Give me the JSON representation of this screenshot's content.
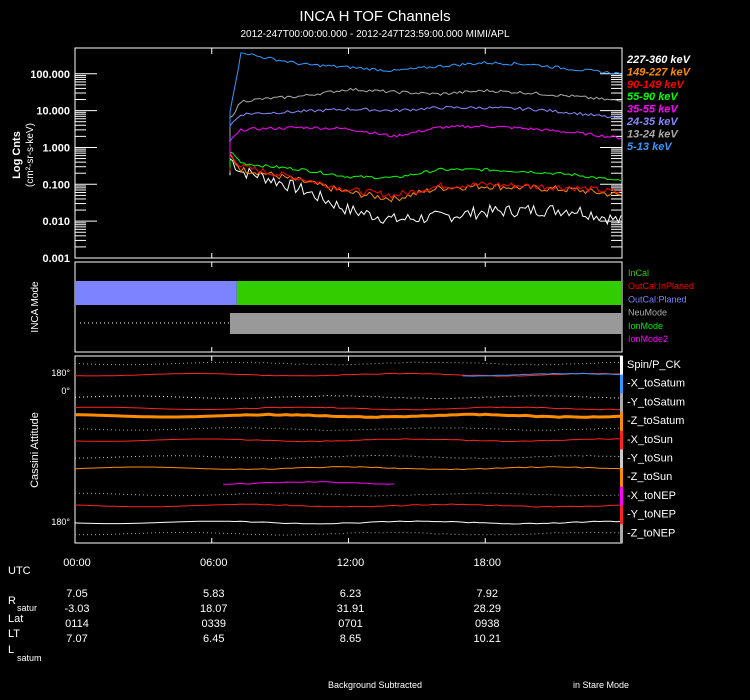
{
  "header": {
    "title": "INCA H TOF Channels",
    "subtitle": "2012-247T00:00:00.000 - 2012-247T23:59:00.000 MIMI/APL"
  },
  "chart_data": [
    {
      "type": "line",
      "name": "tof-spectrogram",
      "ylabel_line1": "Log Cnts",
      "ylabel_line2": "(cm²-sr-s-keV)",
      "yscale": "log",
      "ylim": [
        0.001,
        500
      ],
      "yticks": [
        "100.000",
        "10.000",
        "1.000",
        "0.100",
        "0.010",
        "0.001"
      ],
      "ytick_values": [
        100,
        10,
        1,
        0.1,
        0.01,
        0.001
      ],
      "xlim_hours": [
        0,
        24
      ],
      "data_start_hour": 6.8,
      "x_hours": [
        6.8,
        7.3,
        8,
        10,
        12,
        14,
        16,
        18,
        20,
        22,
        24
      ],
      "series": [
        {
          "name": "227-360 keV",
          "color": "#ffffff",
          "values": [
            0.5,
            0.22,
            0.18,
            0.07,
            0.02,
            0.011,
            0.013,
            0.018,
            0.02,
            0.02,
            0.01
          ]
        },
        {
          "name": "149-227 keV",
          "color": "#ff8c00",
          "values": [
            0.6,
            0.25,
            0.22,
            0.12,
            0.06,
            0.04,
            0.08,
            0.09,
            0.08,
            0.07,
            0.05
          ]
        },
        {
          "name": "90-149 keV",
          "color": "#ff0000",
          "values": [
            0.7,
            0.3,
            0.24,
            0.14,
            0.07,
            0.05,
            0.09,
            0.1,
            0.09,
            0.08,
            0.06
          ]
        },
        {
          "name": "55-90 keV",
          "color": "#00ff00",
          "values": [
            0.8,
            0.38,
            0.33,
            0.25,
            0.16,
            0.15,
            0.25,
            0.25,
            0.22,
            0.18,
            0.12
          ]
        },
        {
          "name": "35-55 keV",
          "color": "#ff00ff",
          "values": [
            1.5,
            3.0,
            3.2,
            3.5,
            3.2,
            2.0,
            3.5,
            3.8,
            3.2,
            2.5,
            1.8
          ]
        },
        {
          "name": "24-35 keV",
          "color": "#8888ff",
          "values": [
            4.0,
            8.0,
            8.5,
            9.5,
            11.0,
            10.0,
            12.0,
            12.0,
            11.0,
            8.5,
            6.0
          ]
        },
        {
          "name": "13-24 keV",
          "color": "#aaaaaa",
          "values": [
            6.0,
            18.0,
            20.0,
            25.0,
            38.0,
            32.0,
            28.0,
            35.0,
            30.0,
            24.0,
            18.0
          ]
        },
        {
          "name": "5-13 keV",
          "color": "#3399ff",
          "values": [
            10.0,
            400.0,
            300.0,
            180.0,
            150.0,
            120.0,
            160.0,
            200.0,
            180.0,
            130.0,
            100.0
          ]
        }
      ]
    },
    {
      "type": "bar",
      "name": "inca-mode",
      "ylabel": "INCA Mode",
      "xlim_hours": [
        0,
        24
      ],
      "legend": [
        {
          "label": "InCal",
          "color": "#33cc00"
        },
        {
          "label": "OutCal:InPlaned",
          "color": "#ff0000"
        },
        {
          "label": "OutCal:Planed",
          "color": "#7b83ff"
        },
        {
          "label": "NeuMode",
          "color": "#aaaaaa"
        },
        {
          "label": "IonMode",
          "color": "#00ee00"
        },
        {
          "label": "IonMode2",
          "color": "#ff00ff"
        }
      ],
      "bars": [
        {
          "label": "OutCal:Planed",
          "row": 0,
          "start_hour": 0,
          "end_hour": 7.1,
          "color": "#7b83ff"
        },
        {
          "label": "InCal",
          "row": 0,
          "start_hour": 7.1,
          "end_hour": 24,
          "color": "#33cc00"
        },
        {
          "label": "NeuMode",
          "row": 1,
          "start_hour": 6.8,
          "end_hour": 24,
          "color": "#999999"
        }
      ]
    },
    {
      "type": "line",
      "name": "cassini-attitude",
      "ylabel": "Cassini Attitude",
      "ytick_top": "180°",
      "ytick_zero": "0°",
      "ytick_bottom": "180°",
      "legend": [
        {
          "label": "Spin/P_CK",
          "color": "#ffffff"
        },
        {
          "label": "-X_toSatum",
          "color": "#3399ff"
        },
        {
          "label": "-Y_toSatum",
          "color": "#aaaaaa"
        },
        {
          "label": "-Z_toSatum",
          "color": "#ff8c00"
        },
        {
          "label": "-X_toSun",
          "color": "#ff2222"
        },
        {
          "label": "-Y_toSun",
          "color": "#cccccc"
        },
        {
          "label": "-Z_toSun",
          "color": "#ff8c00"
        },
        {
          "label": "-X_toNEP",
          "color": "#ff00ff"
        },
        {
          "label": "-Y_toNEP",
          "color": "#ff2222"
        },
        {
          "label": "-Z_toNEP",
          "color": "#aaaaaa"
        }
      ],
      "tracks": [
        {
          "color": "#aaaaaa",
          "dotted": true,
          "value": 0.04
        },
        {
          "color": "#ff2222",
          "dotted": false,
          "value": 0.1
        },
        {
          "color": "#3399ff",
          "dotted": false,
          "value": 0.1,
          "from_hour": 17
        },
        {
          "color": "#ffffff",
          "dotted": true,
          "value": 0.22
        },
        {
          "color": "#ff2222",
          "dotted": false,
          "value": 0.28
        },
        {
          "color": "#ff8c00",
          "dotted": false,
          "value": 0.32,
          "thick": true
        },
        {
          "color": "#aaaaaa",
          "dotted": true,
          "value": 0.39
        },
        {
          "color": "#ff2222",
          "dotted": false,
          "value": 0.45
        },
        {
          "color": "#cccccc",
          "dotted": true,
          "value": 0.54
        },
        {
          "color": "#ff8c00",
          "dotted": false,
          "value": 0.6
        },
        {
          "color": "#ff00ff",
          "dotted": false,
          "value": 0.68,
          "from_hour": 6.5,
          "to_hour": 14
        },
        {
          "color": "#aaaaaa",
          "dotted": true,
          "value": 0.74
        },
        {
          "color": "#ff2222",
          "dotted": false,
          "value": 0.8
        },
        {
          "color": "#ffffff",
          "dotted": false,
          "value": 0.89
        },
        {
          "color": "#aaaaaa",
          "dotted": true,
          "value": 0.95
        }
      ]
    }
  ],
  "time_axis": {
    "label": "UTC",
    "ticks": [
      {
        "label": "00:00",
        "hour": 0
      },
      {
        "label": "06:00",
        "hour": 6
      },
      {
        "label": "12:00",
        "hour": 12
      },
      {
        "label": "18:00",
        "hour": 18
      }
    ]
  },
  "ephemeris": {
    "row_labels": {
      "r_main": "R",
      "r_sub": "satur",
      "lat": "Lat",
      "lt": "LT",
      "l_main": "L",
      "l_sub": "satum"
    },
    "columns": [
      {
        "r": "7.05",
        "lat": "-3.03",
        "lt": "0114",
        "l": "7.07"
      },
      {
        "r": "5.83",
        "lat": "18.07",
        "lt": "0339",
        "l": "6.45"
      },
      {
        "r": "6.23",
        "lat": "31.91",
        "lt": "0701",
        "l": "8.65"
      },
      {
        "r": "7.92",
        "lat": "28.29",
        "lt": "0938",
        "l": "10.21"
      }
    ]
  },
  "footer": {
    "left": "Background Subtracted",
    "right": "in Stare Mode"
  }
}
